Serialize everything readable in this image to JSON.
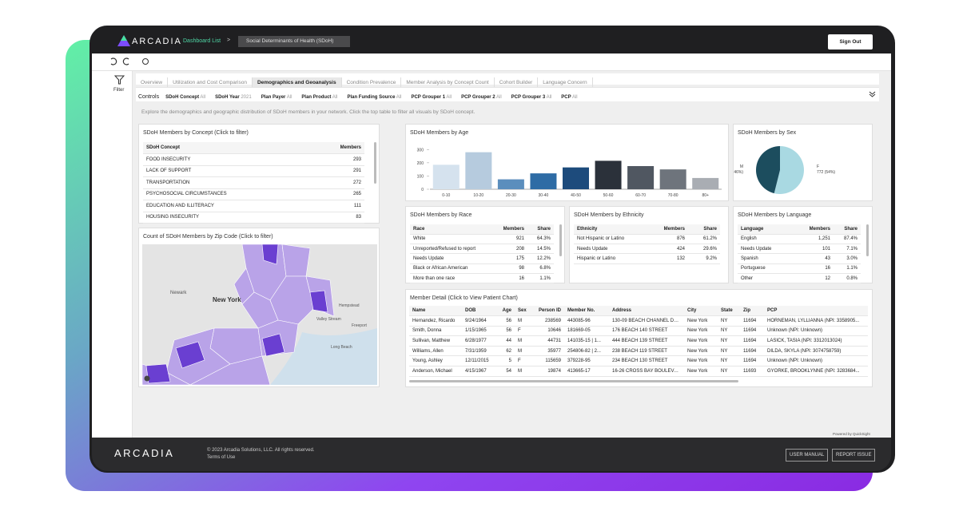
{
  "header": {
    "logo": "ARCADIA",
    "breadcrumb": "Dashboard List",
    "separator": ">",
    "dashboard": "Social Determinants of Health (SDoH)",
    "sign_out": "Sign Out"
  },
  "sidebar": {
    "filter": "Filter"
  },
  "tabs": [
    "Overview",
    "Utilization and Cost Comparison",
    "Demographics and Geoanalysis",
    "Condition Prevalence",
    "Member Analysis by Concept Count",
    "Cohort Builder",
    "Language Concern"
  ],
  "active_tab": 2,
  "controls": {
    "label": "Controls",
    "items": [
      {
        "name": "SDoH Concept",
        "value": "All"
      },
      {
        "name": "SDoH Year",
        "value": "2021"
      },
      {
        "name": "Plan Payer",
        "value": "All"
      },
      {
        "name": "Plan Product",
        "value": "All"
      },
      {
        "name": "Plan Funding Source",
        "value": "All"
      },
      {
        "name": "PCP Grouper 1",
        "value": "All"
      },
      {
        "name": "PCP Grouper 2",
        "value": "All"
      },
      {
        "name": "PCP Grouper 3",
        "value": "All"
      },
      {
        "name": "PCP",
        "value": "All"
      }
    ]
  },
  "description": "Explore the demographics and geographic distribution of SDoH members in your network. Click the top table to filter all visuals by SDoH concept.",
  "concept_table": {
    "title": "SDoH Members by Concept (Click to filter)",
    "columns": [
      "SDoH Concept",
      "Members"
    ],
    "rows": [
      [
        "FOOD INSECURITY",
        "293"
      ],
      [
        "LACK OF SUPPORT",
        "291"
      ],
      [
        "TRANSPORTATION",
        "272"
      ],
      [
        "PSYCHOSOCIAL CIRCUMSTANCES",
        "265"
      ],
      [
        "EDUCATION AND ILLITERACY",
        "111"
      ],
      [
        "HOUSING INSECURITY",
        "83"
      ]
    ]
  },
  "map": {
    "title": "Count of SDoH Members by Zip Code (Click to filter)",
    "labels": [
      "Newark",
      "New York",
      "Hempstead",
      "Valley Stream",
      "Freeport",
      "Long Beach"
    ]
  },
  "age_chart": {
    "type": "bar",
    "title": "SDoH Members by Age",
    "categories": [
      "0-10",
      "10-20",
      "20-30",
      "30-40",
      "40-50",
      "50-60",
      "60-70",
      "70-80",
      "80+"
    ],
    "values": [
      185,
      280,
      75,
      120,
      165,
      215,
      175,
      150,
      85
    ],
    "colors": [
      "#d5e2ee",
      "#b6cbde",
      "#5b8ebd",
      "#2e6ca5",
      "#1d4b7c",
      "#2b313a",
      "#505761",
      "#6e747c",
      "#a9adb3"
    ],
    "ylim": [
      0,
      320
    ],
    "yticks": [
      0,
      100,
      200,
      300
    ]
  },
  "sex_chart": {
    "type": "pie",
    "title": "SDoH Members by Sex",
    "series": [
      {
        "name": "F",
        "value": 772,
        "label": "772 (54%)",
        "color": "#a9d9e2"
      },
      {
        "name": "M",
        "value": 660,
        "label": "660 (46%)",
        "color": "#1c4d5e"
      }
    ]
  },
  "race_table": {
    "title": "SDoH Members by Race",
    "columns": [
      "Race",
      "Members",
      "Share"
    ],
    "rows": [
      [
        "White",
        "921",
        "64.3%"
      ],
      [
        "Unreported/Refused to report",
        "208",
        "14.5%"
      ],
      [
        "Needs Update",
        "175",
        "12.2%"
      ],
      [
        "Black or African American",
        "98",
        "6.8%"
      ],
      [
        "More than one race",
        "16",
        "1.1%"
      ]
    ]
  },
  "ethnicity_table": {
    "title": "SDoH Members by Ethnicity",
    "columns": [
      "Ethnicity",
      "Members",
      "Share"
    ],
    "rows": [
      [
        "Not Hispanic or Latino",
        "876",
        "61.2%"
      ],
      [
        "Needs Update",
        "424",
        "29.6%"
      ],
      [
        "Hispanic or Latino",
        "132",
        "9.2%"
      ]
    ]
  },
  "language_table": {
    "title": "SDoH Members by Language",
    "columns": [
      "Language",
      "Members",
      "Share"
    ],
    "rows": [
      [
        "English",
        "1,251",
        "87.4%"
      ],
      [
        "Needs Update",
        "101",
        "7.1%"
      ],
      [
        "Spanish",
        "43",
        "3.0%"
      ],
      [
        "Portuguese",
        "16",
        "1.1%"
      ],
      [
        "Other",
        "12",
        "0.8%"
      ]
    ]
  },
  "member_table": {
    "title": "Member Detail (Click to View Patient Chart)",
    "columns": [
      "Name",
      "DOB",
      "Age",
      "Sex",
      "Person ID",
      "Member No.",
      "Address",
      "City",
      "State",
      "Zip",
      "PCP"
    ],
    "rows": [
      [
        "Hernandez, Ricardo",
        "9/24/1964",
        "56",
        "M",
        "238569",
        "443085-96",
        "130-09 BEACH CHANNEL DRI...",
        "New York",
        "NY",
        "11694",
        "HORNEMAN, LYLLIANNA (NPI: 3358905..."
      ],
      [
        "Smith, Donna",
        "1/15/1965",
        "56",
        "F",
        "10646",
        "181669-05",
        "176 BEACH 140 STREET",
        "New York",
        "NY",
        "11694",
        "Unknown (NPI: Unknown)"
      ],
      [
        "Sullivan, Matthew",
        "6/28/1977",
        "44",
        "M",
        "44731",
        "141035-15 | 1...",
        "444 BEACH 139 STREET",
        "New York",
        "NY",
        "11694",
        "LASICK, TASIA (NPI: 3312013024)"
      ],
      [
        "Williams, Allen",
        "7/31/1959",
        "62",
        "M",
        "35977",
        "254806-82 | 2...",
        "238 BEACH 119 STREET",
        "New York",
        "NY",
        "11694",
        "DILDA, SKYLA (NPI: 3074758759)"
      ],
      [
        "Young, Ashley",
        "12/11/2015",
        "5",
        "F",
        "115659",
        "379228-95",
        "234 BEACH 130 STREET",
        "New York",
        "NY",
        "11694",
        "Unknown (NPI: Unknown)"
      ],
      [
        "Anderson, Michael",
        "4/15/1967",
        "54",
        "M",
        "19874",
        "413665-17",
        "16-26 CROSS BAY BOULEVARD",
        "New York",
        "NY",
        "11693",
        "GYORKE, BROOKLYNNE (NPI: 3283684..."
      ]
    ]
  },
  "powered_by": "Powered by QuickSight",
  "footer": {
    "logo": "ARCADIA",
    "copyright": "© 2023 Arcadia Solutions, LLC. All rights reserved.",
    "terms": "Terms of Use",
    "buttons": [
      "USER MANUAL",
      "REPORT ISSUE"
    ]
  }
}
